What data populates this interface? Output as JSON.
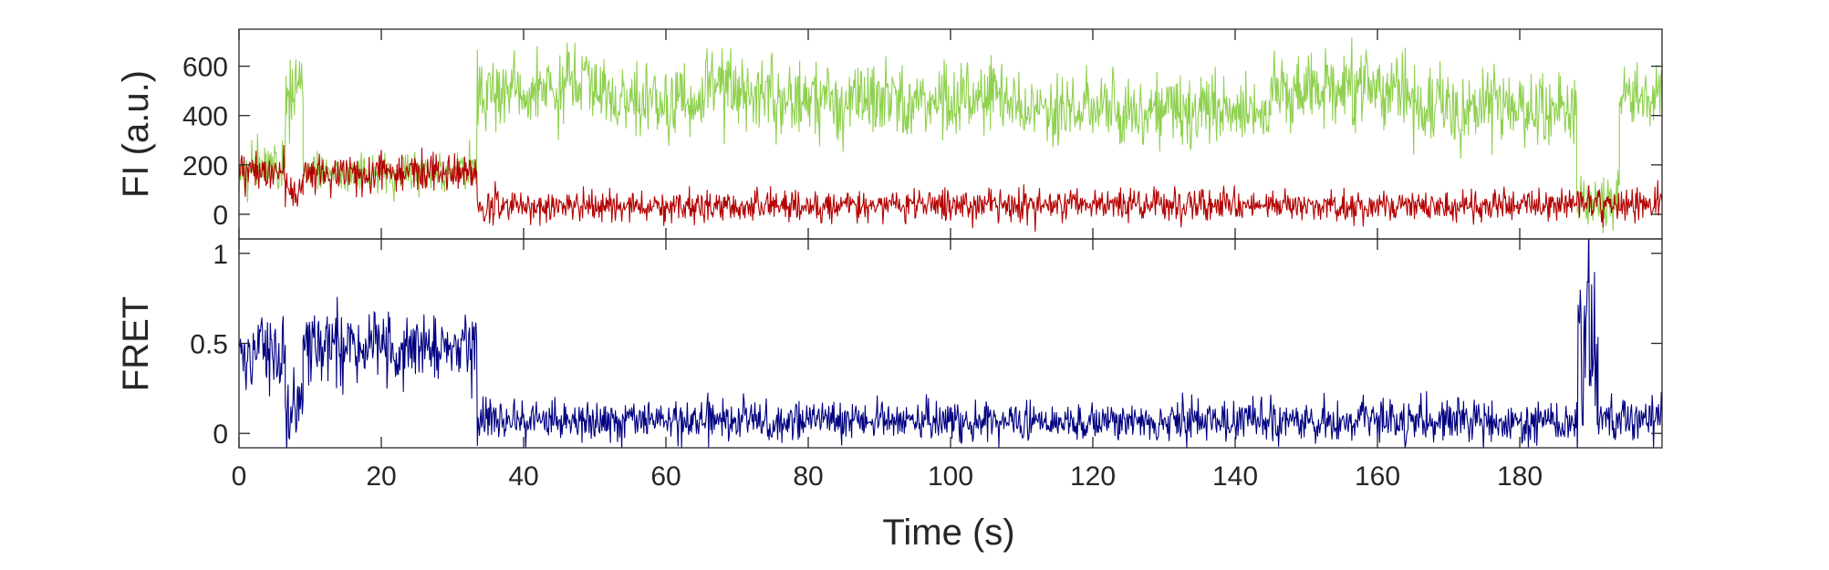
{
  "chart_data": [
    {
      "type": "line",
      "title": "",
      "xlabel": "",
      "ylabel": "FI (a.u.)",
      "xlim": [
        0,
        200
      ],
      "ylim": [
        -100,
        750
      ],
      "x_ticks": [
        0,
        20,
        40,
        60,
        80,
        100,
        120,
        140,
        160,
        180
      ],
      "y_ticks": [
        0,
        200,
        400,
        600
      ],
      "y_tick_labels": [
        "0",
        "200",
        "400",
        "600"
      ],
      "grid": false,
      "legend": "none",
      "sample_interval_s": 0.1,
      "series": [
        {
          "color": "#8fd14f",
          "segments": [
            {
              "t": [
                0,
                6.5
              ],
              "mean": 190,
              "noise": 65
            },
            {
              "t": [
                6.5,
                9
              ],
              "mean": 520,
              "noise": 110
            },
            {
              "t": [
                9,
                33.5
              ],
              "mean": 170,
              "noise": 55
            },
            {
              "t": [
                33.5,
                48
              ],
              "mean": 500,
              "noise": 95
            },
            {
              "t": [
                48,
                52
              ],
              "mean": 540,
              "noise": 110
            },
            {
              "t": [
                52,
                65
              ],
              "mean": 440,
              "noise": 95
            },
            {
              "t": [
                65,
                75
              ],
              "mean": 520,
              "noise": 105
            },
            {
              "t": [
                75,
                110
              ],
              "mean": 460,
              "noise": 95
            },
            {
              "t": [
                110,
                145
              ],
              "mean": 420,
              "noise": 90
            },
            {
              "t": [
                145,
                165
              ],
              "mean": 510,
              "noise": 105
            },
            {
              "t": [
                165,
                188
              ],
              "mean": 430,
              "noise": 95
            },
            {
              "t": [
                188,
                194
              ],
              "mean": 50,
              "noise": 70
            },
            {
              "t": [
                194,
                200
              ],
              "mean": 470,
              "noise": 90
            }
          ]
        },
        {
          "color": "#b30000",
          "segments": [
            {
              "t": [
                0,
                6.5
              ],
              "mean": 170,
              "noise": 60
            },
            {
              "t": [
                6.5,
                9
              ],
              "mean": 90,
              "noise": 60
            },
            {
              "t": [
                9,
                33.5
              ],
              "mean": 170,
              "noise": 50
            },
            {
              "t": [
                33.5,
                200
              ],
              "mean": 35,
              "noise": 42
            }
          ]
        }
      ]
    },
    {
      "type": "line",
      "title": "",
      "xlabel": "Time (s)",
      "ylabel": "FRET",
      "xlim": [
        0,
        200
      ],
      "ylim": [
        -0.08,
        1.08
      ],
      "x_ticks": [
        0,
        20,
        40,
        60,
        80,
        100,
        120,
        140,
        160,
        180
      ],
      "x_tick_labels": [
        "0",
        "20",
        "40",
        "60",
        "80",
        "100",
        "120",
        "140",
        "160",
        "180"
      ],
      "y_ticks": [
        0,
        0.5,
        1
      ],
      "y_tick_labels": [
        "0",
        "0.5",
        "1"
      ],
      "grid": false,
      "legend": "none",
      "sample_interval_s": 0.1,
      "series": [
        {
          "color": "#000080",
          "segments": [
            {
              "t": [
                0,
                6.5
              ],
              "mean": 0.45,
              "noise": 0.14
            },
            {
              "t": [
                6.5,
                9
              ],
              "mean": 0.15,
              "noise": 0.14
            },
            {
              "t": [
                9,
                33.5
              ],
              "mean": 0.48,
              "noise": 0.14
            },
            {
              "t": [
                33.5,
                175
              ],
              "mean": 0.07,
              "noise": 0.075
            },
            {
              "t": [
                175,
                188
              ],
              "mean": 0.06,
              "noise": 0.08
            },
            {
              "t": [
                188,
                191
              ],
              "mean": 0.55,
              "noise": 0.45
            },
            {
              "t": [
                191,
                200
              ],
              "mean": 0.08,
              "noise": 0.08
            }
          ]
        }
      ]
    }
  ]
}
